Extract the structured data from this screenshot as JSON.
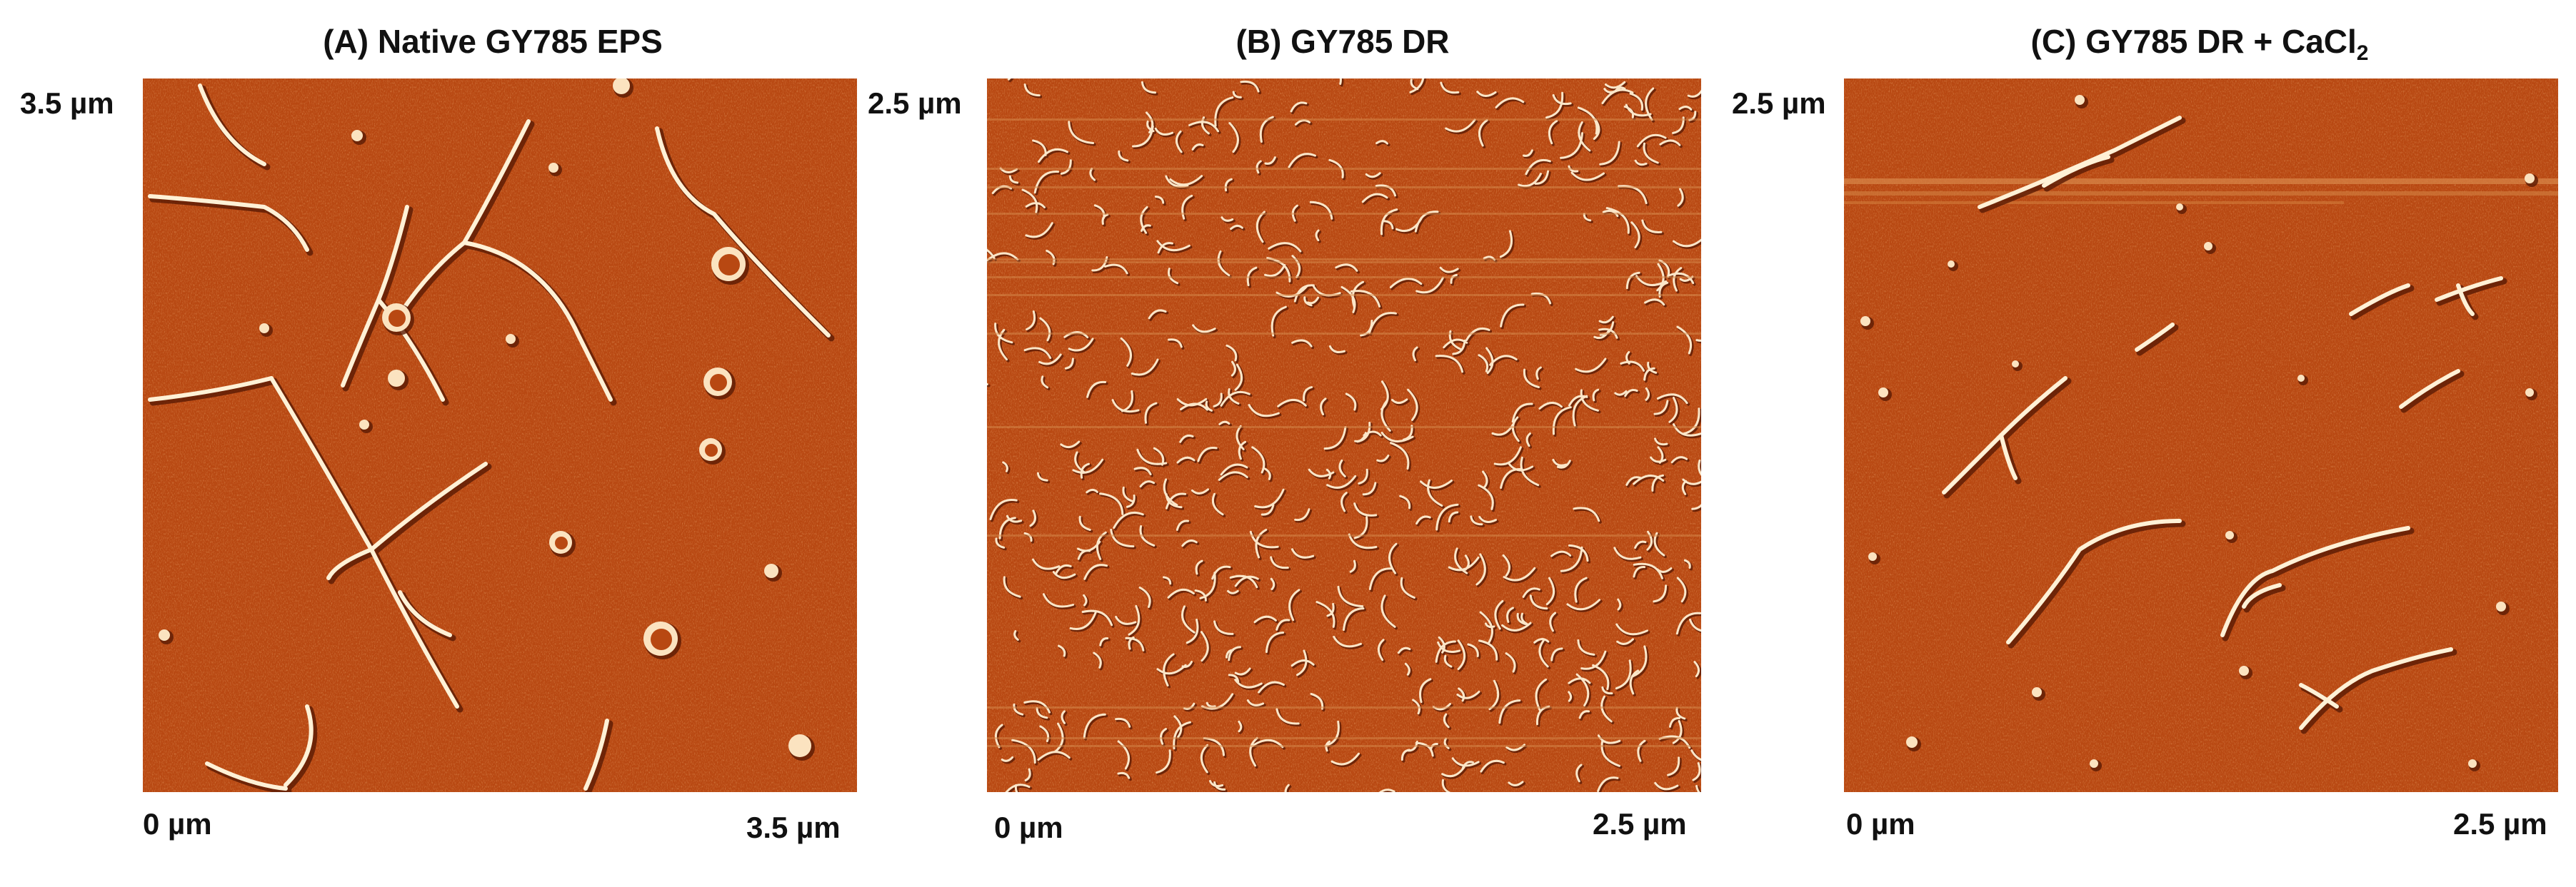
{
  "colors": {
    "background": "#ffffff",
    "afm_substrate": "#b84812",
    "afm_fibril_highlight": "#fff3d8",
    "afm_fibril_shadow": "#5a1a04",
    "text": "#111111"
  },
  "panels": [
    {
      "title": "(A) Native GY785 EPS",
      "title_sub": "",
      "y_top_label": "3.5 µm",
      "x_start_label": "0 µm",
      "x_end_label": "3.5 µm"
    },
    {
      "title": "(B) GY785 DR",
      "title_sub": "",
      "y_top_label": "2.5 µm",
      "x_start_label": "0 µm",
      "x_end_label": "2.5 µm"
    },
    {
      "title": "(C) GY785 DR + CaCl",
      "title_sub": "2",
      "y_top_label": "2.5 µm",
      "x_start_label": "0 µm",
      "x_end_label": "2.5 µm"
    }
  ]
}
